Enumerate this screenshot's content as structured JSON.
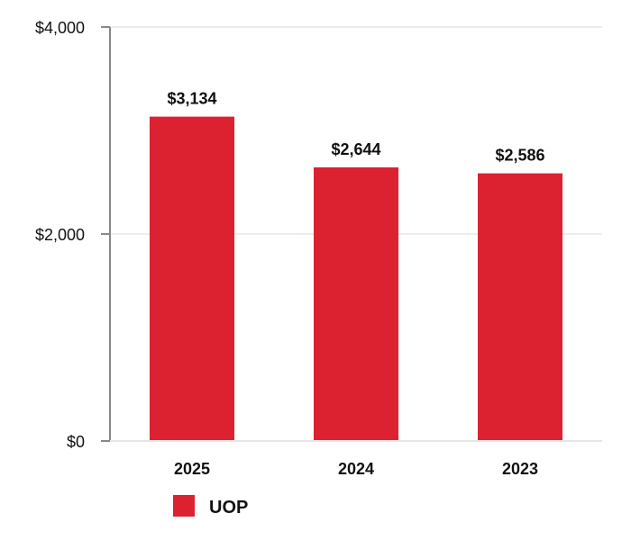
{
  "chart_data": {
    "type": "bar",
    "categories": [
      "2025",
      "2024",
      "2023"
    ],
    "series": [
      {
        "name": "UOP",
        "values": [
          3134,
          2644,
          2586
        ],
        "labels": [
          "$3,134",
          "$2,644",
          "$2,586"
        ],
        "color": "#dc2230"
      }
    ],
    "y_ticks": [
      0,
      2000,
      4000
    ],
    "y_tick_labels": [
      "$0",
      "$2,000",
      "$4,000"
    ],
    "ylim": [
      0,
      4000
    ],
    "grid": true,
    "legend": "bottom-left",
    "title": "",
    "xlabel": "",
    "ylabel": ""
  },
  "colors": {
    "axis": "#888888",
    "grid": "#e6e6e6"
  }
}
